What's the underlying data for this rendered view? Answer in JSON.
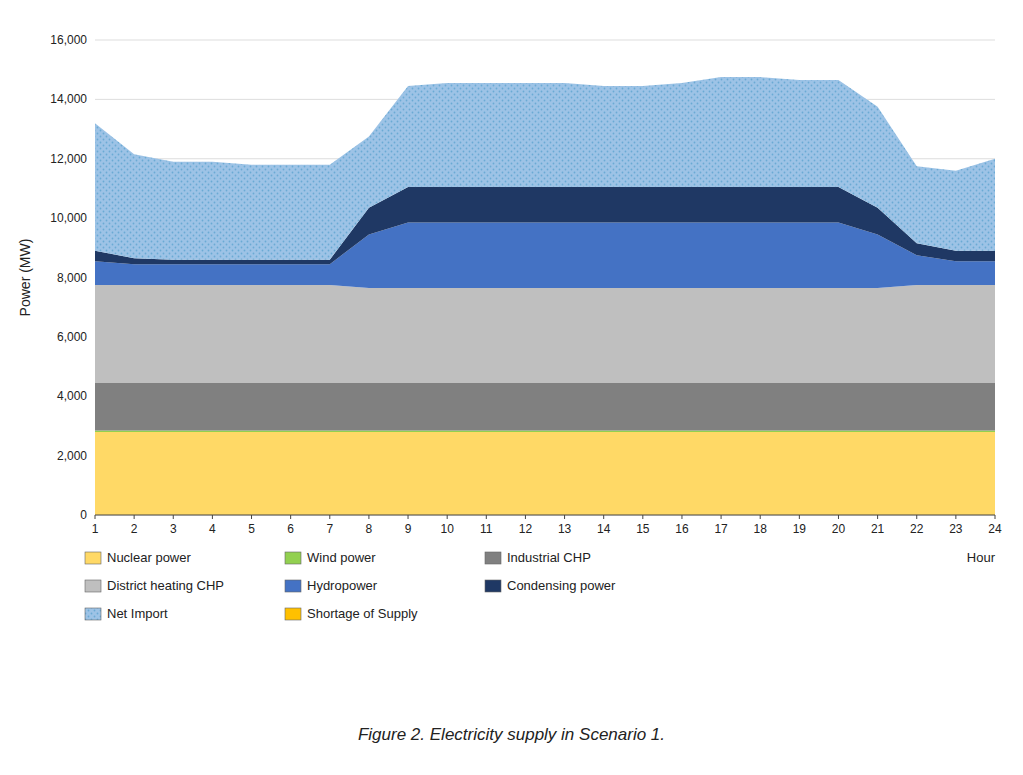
{
  "chart_data": {
    "type": "area",
    "stacked": true,
    "title": "Figure 2. Electricity supply in Scenario 1.",
    "x_label": "Hour",
    "y_label": "Power (MW)",
    "x": [
      1,
      2,
      3,
      4,
      5,
      6,
      7,
      8,
      9,
      10,
      11,
      12,
      13,
      14,
      15,
      16,
      17,
      18,
      19,
      20,
      21,
      22,
      23,
      24
    ],
    "xlim": [
      1,
      24
    ],
    "xticks": [
      1,
      2,
      3,
      4,
      5,
      6,
      7,
      8,
      9,
      10,
      11,
      12,
      13,
      14,
      15,
      16,
      17,
      18,
      19,
      20,
      21,
      22,
      23,
      24
    ],
    "ylim": [
      0,
      16000
    ],
    "yticks": [
      0,
      {
        "value": 2000,
        "label": "2,000"
      },
      {
        "value": 4000,
        "label": "4,000"
      },
      {
        "value": 6000,
        "label": "6,000"
      },
      {
        "value": 8000,
        "label": "8,000"
      },
      {
        "value": 10000,
        "label": "10,000"
      },
      {
        "value": 12000,
        "label": "12,000"
      },
      {
        "value": 14000,
        "label": "14,000"
      },
      {
        "value": 16000,
        "label": "16,000"
      }
    ],
    "grid": true,
    "legend": "bottom",
    "series": [
      {
        "name": "Nuclear power",
        "color": "#FFD966",
        "values": [
          2800,
          2800,
          2800,
          2800,
          2800,
          2800,
          2800,
          2800,
          2800,
          2800,
          2800,
          2800,
          2800,
          2800,
          2800,
          2800,
          2800,
          2800,
          2800,
          2800,
          2800,
          2800,
          2800,
          2800
        ]
      },
      {
        "name": "Wind power",
        "color": "#92D050",
        "values": [
          50,
          50,
          50,
          50,
          50,
          50,
          50,
          50,
          50,
          50,
          50,
          50,
          50,
          50,
          50,
          50,
          50,
          50,
          50,
          50,
          50,
          50,
          50,
          50
        ]
      },
      {
        "name": "Industrial CHP",
        "color": "#808080",
        "values": [
          1600,
          1600,
          1600,
          1600,
          1600,
          1600,
          1600,
          1600,
          1600,
          1600,
          1600,
          1600,
          1600,
          1600,
          1600,
          1600,
          1600,
          1600,
          1600,
          1600,
          1600,
          1600,
          1600,
          1600
        ]
      },
      {
        "name": "District heating CHP",
        "color": "#BFBFBF",
        "values": [
          3300,
          3300,
          3300,
          3300,
          3300,
          3300,
          3300,
          3200,
          3200,
          3200,
          3200,
          3200,
          3200,
          3200,
          3200,
          3200,
          3200,
          3200,
          3200,
          3200,
          3200,
          3300,
          3300,
          3300
        ]
      },
      {
        "name": "Hydropower",
        "color": "#4472C4",
        "values": [
          800,
          700,
          700,
          700,
          700,
          700,
          700,
          1800,
          2200,
          2200,
          2200,
          2200,
          2200,
          2200,
          2200,
          2200,
          2200,
          2200,
          2200,
          2200,
          1800,
          1000,
          800,
          800
        ]
      },
      {
        "name": "Condensing power",
        "color": "#1F3864",
        "values": [
          350,
          200,
          150,
          150,
          150,
          150,
          150,
          900,
          1200,
          1200,
          1200,
          1200,
          1200,
          1200,
          1200,
          1200,
          1200,
          1200,
          1200,
          1200,
          900,
          400,
          350,
          350
        ]
      },
      {
        "name": "Net Import",
        "color": "#9DC3E6",
        "values": [
          4300,
          3500,
          3300,
          3300,
          3200,
          3200,
          3200,
          2400,
          3400,
          3500,
          3500,
          3500,
          3500,
          3400,
          3400,
          3500,
          3700,
          3700,
          3600,
          3600,
          3400,
          2600,
          2700,
          3100
        ]
      },
      {
        "name": "Shortage of Supply",
        "color": "#FFC000",
        "values": [
          0,
          0,
          0,
          0,
          0,
          0,
          0,
          0,
          0,
          0,
          0,
          0,
          0,
          0,
          0,
          0,
          0,
          0,
          0,
          0,
          0,
          0,
          0,
          0
        ]
      }
    ]
  }
}
